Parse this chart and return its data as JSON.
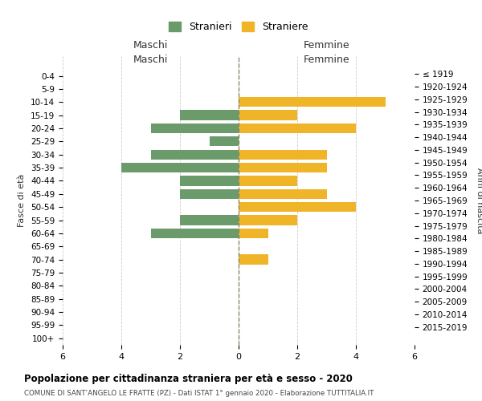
{
  "age_groups": [
    "0-4",
    "5-9",
    "10-14",
    "15-19",
    "20-24",
    "25-29",
    "30-34",
    "35-39",
    "40-44",
    "45-49",
    "50-54",
    "55-59",
    "60-64",
    "65-69",
    "70-74",
    "75-79",
    "80-84",
    "85-89",
    "90-94",
    "95-99",
    "100+"
  ],
  "birth_years": [
    "2015-2019",
    "2010-2014",
    "2005-2009",
    "2000-2004",
    "1995-1999",
    "1990-1994",
    "1985-1989",
    "1980-1984",
    "1975-1979",
    "1970-1974",
    "1965-1969",
    "1960-1964",
    "1955-1959",
    "1950-1954",
    "1945-1949",
    "1940-1944",
    "1935-1939",
    "1930-1934",
    "1925-1929",
    "1920-1924",
    "≤ 1919"
  ],
  "males": [
    0,
    0,
    0,
    2,
    3,
    1,
    3,
    4,
    2,
    2,
    0,
    2,
    3,
    0,
    0,
    0,
    0,
    0,
    0,
    0,
    0
  ],
  "females": [
    0,
    0,
    5,
    2,
    4,
    0,
    3,
    3,
    2,
    3,
    4,
    2,
    1,
    0,
    1,
    0,
    0,
    0,
    0,
    0,
    0
  ],
  "male_color": "#6b9a6b",
  "female_color": "#f0b429",
  "background_color": "#ffffff",
  "grid_color": "#cccccc",
  "title": "Popolazione per cittadinanza straniera per età e sesso - 2020",
  "subtitle": "COMUNE DI SANT’ANGELO LE FRATTE (PZ) - Dati ISTAT 1° gennaio 2020 - Elaborazione TUTTITALIA.IT",
  "left_axis_label": "Fasce di età",
  "right_axis_label": "Anni di nascita",
  "left_section_label": "Maschi",
  "right_section_label": "Femmine",
  "legend_male": "Stranieri",
  "legend_female": "Straniere",
  "xlim": 6
}
